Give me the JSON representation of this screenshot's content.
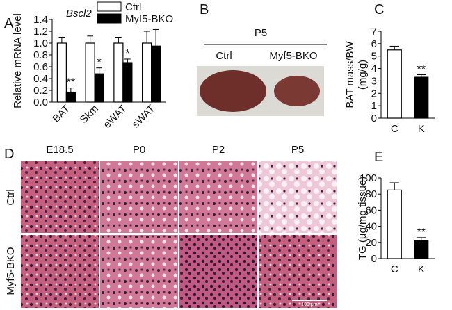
{
  "panel_labels": [
    "A",
    "B",
    "C",
    "D",
    "E"
  ],
  "chart_data": [
    {
      "type": "bar",
      "subtitle": "Bscl2",
      "y_label": "Relative mRNA level",
      "categories": [
        "BAT",
        "Skm",
        "eWAT",
        "sWAT"
      ],
      "series": [
        {
          "name": "Ctrl",
          "color": "#ffffff",
          "values": [
            1.0,
            1.0,
            1.0,
            1.0
          ],
          "errors": [
            0.1,
            0.12,
            0.1,
            0.2
          ]
        },
        {
          "name": "Myf5-BKO",
          "color": "#000000",
          "values": [
            0.17,
            0.48,
            0.67,
            0.95
          ],
          "errors": [
            0.07,
            0.1,
            0.06,
            0.28
          ]
        }
      ],
      "annotations": [
        "**",
        "*",
        "*",
        null
      ],
      "ylim": [
        0,
        1.4
      ],
      "yticks": [
        {
          "value": 0,
          "label": "0.0"
        },
        0.2,
        0.4,
        0.6,
        0.8,
        {
          "value": 1,
          "label": "1.0"
        },
        1.2,
        1.4
      ],
      "legend": "top-right"
    },
    {
      "type": "bar",
      "y_label": [
        "BAT mass/BW",
        "(mg/g)"
      ],
      "categories": [
        "C",
        "K"
      ],
      "series": [
        {
          "colors": [
            "#ffffff",
            "#000000"
          ],
          "values": [
            5.5,
            3.3
          ],
          "errors": [
            0.3,
            0.2
          ]
        }
      ],
      "annotations": [
        null,
        "**"
      ],
      "ylim": [
        0,
        7
      ],
      "yticks": [
        0,
        1,
        2,
        3,
        4,
        5,
        6,
        7
      ]
    },
    {
      "type": "bar",
      "y_label": [
        "TG (μg/mg tissue)"
      ],
      "categories": [
        "C",
        "K"
      ],
      "series": [
        {
          "colors": [
            "#ffffff",
            "#000000"
          ],
          "values": [
            85,
            22
          ],
          "errors": [
            9,
            4
          ]
        }
      ],
      "annotations": [
        null,
        "**"
      ],
      "ylim": [
        0,
        100
      ],
      "yticks": [
        0,
        20,
        40,
        60,
        80,
        100
      ]
    }
  ],
  "panel_b": {
    "title": "P5",
    "labels": [
      "Ctrl",
      "Myf5-BKO"
    ]
  },
  "panel_d": {
    "columns": [
      "E18.5",
      "P0",
      "P2",
      "P5"
    ],
    "rows": [
      "Ctrl",
      "Myf5-BKO"
    ],
    "scale_bar": "100 μm"
  }
}
